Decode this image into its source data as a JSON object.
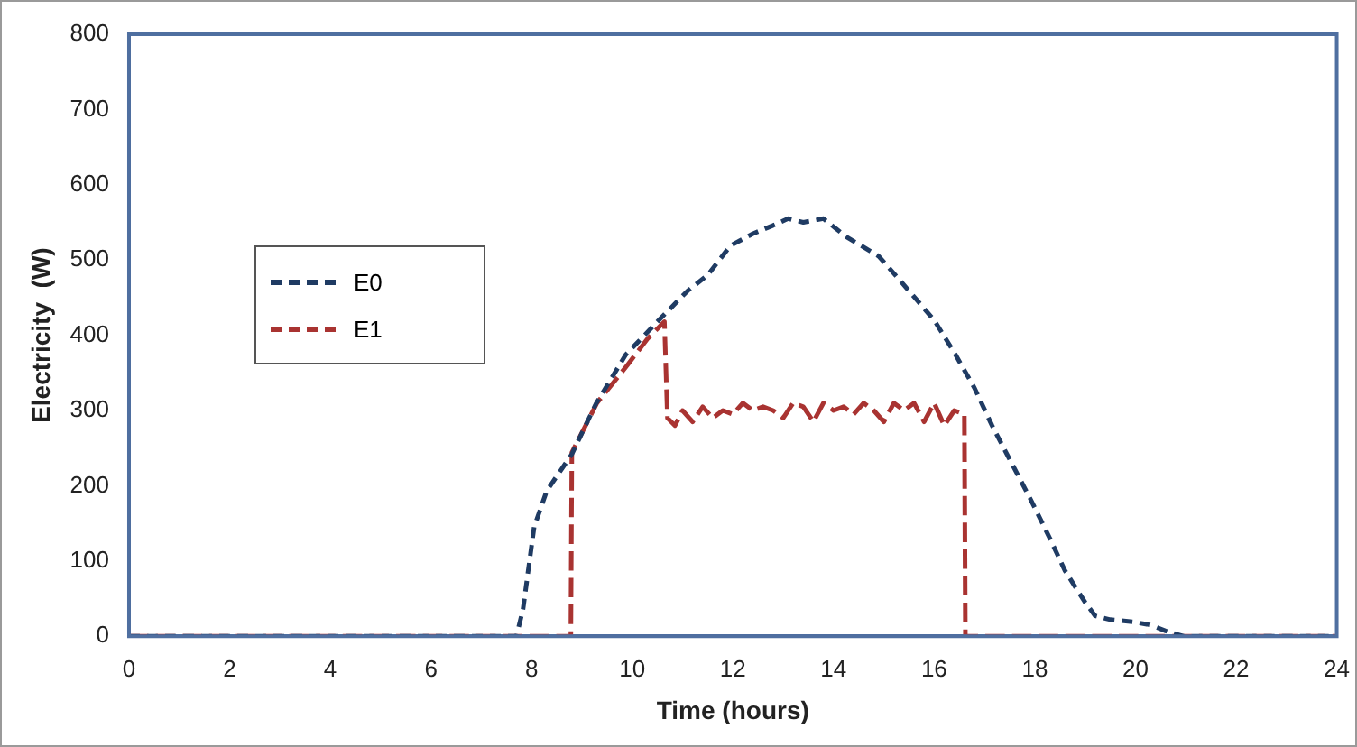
{
  "chart_data": {
    "type": "line",
    "xlabel": "Time (hours)",
    "ylabel": "Electricity  (W)",
    "xlim": [
      0,
      24
    ],
    "xticks": [
      0,
      2,
      4,
      6,
      8,
      10,
      12,
      14,
      16,
      18,
      20,
      22,
      24
    ],
    "ylim": [
      0,
      800
    ],
    "yticks": [
      0,
      100,
      200,
      300,
      400,
      500,
      600,
      700,
      800
    ],
    "grid": false,
    "legend": "left",
    "marker": "none",
    "line_style": "dashed",
    "series": [
      {
        "name": "E0",
        "color": "#1f3b63",
        "x": [
          0,
          7.7,
          7.83,
          8.05,
          8.3,
          8.8,
          9.28,
          9.87,
          10.5,
          11.1,
          11.5,
          11.95,
          12.4,
          12.8,
          13.1,
          13.4,
          13.8,
          14.25,
          14.9,
          15.5,
          16.0,
          16.4,
          16.8,
          17.15,
          17.5,
          17.9,
          18.3,
          18.6,
          19.0,
          19.2,
          19.5,
          19.95,
          20.3,
          20.6,
          20.95,
          24
        ],
        "values": [
          0,
          0,
          36,
          145,
          193,
          242,
          309,
          374,
          418,
          459,
          480,
          519,
          535,
          546,
          555,
          550,
          555,
          531,
          505,
          459,
          420,
          377,
          330,
          280,
          235,
          184,
          130,
          87,
          45,
          27,
          22,
          19,
          15,
          7,
          0,
          0
        ]
      },
      {
        "name": "E1",
        "color": "#a93331",
        "x": [
          0,
          8.78,
          8.8,
          9.3,
          9.9,
          10.3,
          10.64,
          10.7,
          10.85,
          11.0,
          11.2,
          11.4,
          11.6,
          11.8,
          12.0,
          12.2,
          12.4,
          12.6,
          12.8,
          13.0,
          13.2,
          13.4,
          13.6,
          13.8,
          14.0,
          14.2,
          14.4,
          14.6,
          14.8,
          15.0,
          15.2,
          15.4,
          15.6,
          15.8,
          16.0,
          16.2,
          16.4,
          16.6,
          16.62,
          24
        ],
        "values": [
          0,
          0,
          244,
          310,
          360,
          395,
          418,
          290,
          280,
          300,
          285,
          305,
          290,
          300,
          295,
          310,
          300,
          305,
          300,
          290,
          310,
          305,
          285,
          310,
          300,
          305,
          295,
          310,
          300,
          285,
          310,
          300,
          310,
          285,
          310,
          280,
          300,
          295,
          0,
          0
        ]
      }
    ]
  }
}
